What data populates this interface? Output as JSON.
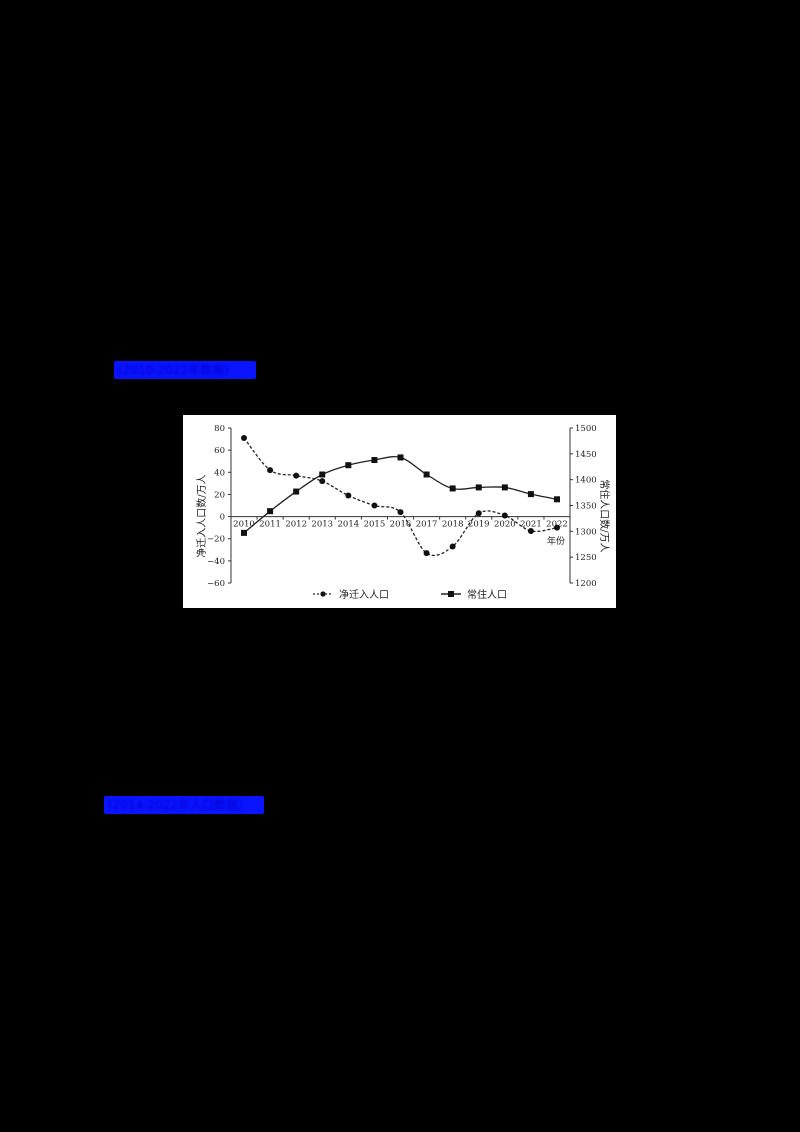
{
  "labels": {
    "top_link": "(2010-2022年数据)",
    "bottom_link": "(2014-2022年人口数据)"
  },
  "colors": {
    "background": "#000000",
    "label_fill": "#0a14ff",
    "chart_bg": "#ffffff",
    "line": "#222222"
  },
  "chart_data": {
    "type": "line",
    "title": "",
    "x": [
      "2010",
      "2011",
      "2012",
      "2013",
      "2014",
      "2015",
      "2016",
      "2017",
      "2018",
      "2019",
      "2020",
      "2021",
      "2022"
    ],
    "xlabel": "年份",
    "ylabel": "净迁入人口数/万人",
    "ylabel_right": "常住人口数/万人",
    "ylim": [
      -60,
      80
    ],
    "ylim_right": [
      1200,
      1500
    ],
    "yticks": [
      80,
      60,
      40,
      20,
      0,
      -20,
      -40,
      -60
    ],
    "yticks_right": [
      1500,
      1450,
      1400,
      1350,
      1300,
      1250,
      1200
    ],
    "grid": false,
    "legend_position": "bottom",
    "series": [
      {
        "name": "净迁入人口",
        "axis": "left",
        "style": "dashed",
        "marker": "circle",
        "values": [
          71,
          42,
          37,
          32,
          19,
          10,
          4,
          -33,
          -27,
          3,
          1,
          -13,
          -10
        ]
      },
      {
        "name": "常住人口",
        "axis": "right",
        "style": "solid",
        "marker": "square",
        "values": [
          1297,
          1339,
          1377,
          1410,
          1428,
          1438,
          1443,
          1410,
          1383,
          1385,
          1385,
          1372,
          1362
        ]
      }
    ]
  }
}
